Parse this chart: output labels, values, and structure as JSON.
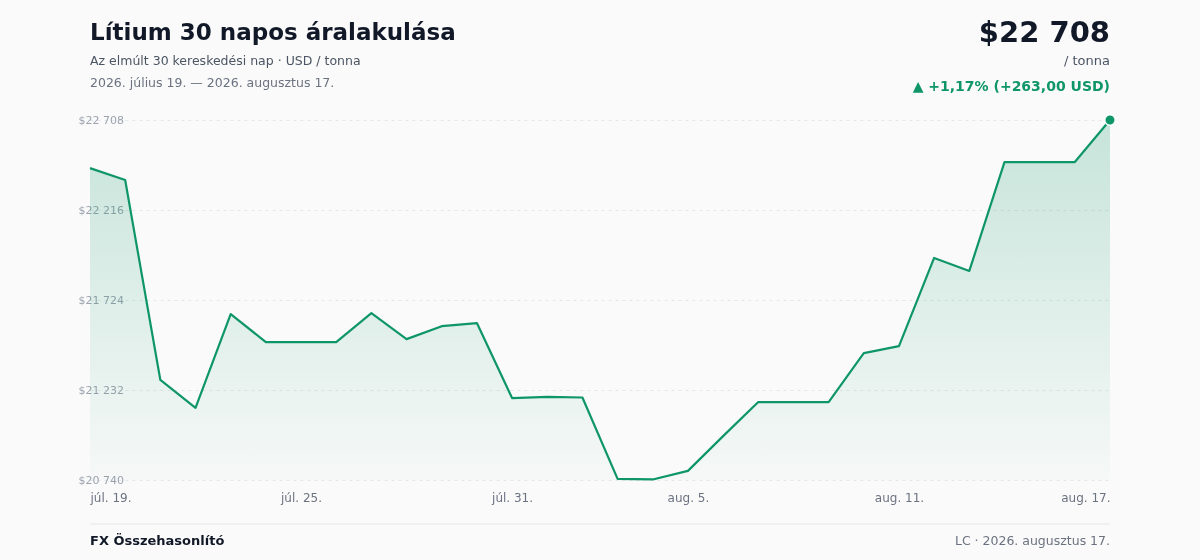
{
  "chart_data": {
    "type": "area",
    "title": "Lítium 30 napos áralakulása",
    "subtitle": "Az elmúlt 30 kereskedési nap · USD / tonna",
    "annotations": [
      "2026. július 19. — 2026. augusztus 17.",
      {
        "text": "$22 708",
        "x": "2026-08-17",
        "y": 22708
      },
      "/ tonna",
      "▲ +1,17% (+263,00 USD)",
      "FX Összehasonlító",
      "LC · 2026. augusztus 17."
    ],
    "x": [
      "2026-07-19",
      "2026-07-20",
      "2026-07-21",
      "2026-07-22",
      "2026-07-23",
      "2026-07-24",
      "2026-07-25",
      "2026-07-26",
      "2026-07-27",
      "2026-07-28",
      "2026-07-29",
      "2026-07-30",
      "2026-07-31",
      "2026-08-01",
      "2026-08-02",
      "2026-08-03",
      "2026-08-04",
      "2026-08-05",
      "2026-08-06",
      "2026-08-07",
      "2026-08-08",
      "2026-08-09",
      "2026-08-10",
      "2026-08-11",
      "2026-08-12",
      "2026-08-13",
      "2026-08-14",
      "2026-08-15",
      "2026-08-16",
      "2026-08-17"
    ],
    "series": [
      {
        "color": "#0f9668",
        "values": [
          22445,
          22380,
          21287,
          21134,
          21647,
          21494,
          21494,
          21494,
          21652,
          21510,
          21581,
          21598,
          21188,
          21194,
          21191,
          20746,
          20743,
          20790,
          20980,
          21166,
          21166,
          21166,
          21434,
          21472,
          21954,
          21883,
          22478,
          22478,
          22478,
          22708
        ]
      }
    ],
    "xlim": [
      "2026-07-19",
      "2026-08-17"
    ],
    "xticks": [
      {
        "value": "2026-07-19",
        "label": "júl. 19."
      },
      {
        "value": "2026-07-25",
        "label": "júl. 25."
      },
      {
        "value": "2026-07-31",
        "label": "júl. 31."
      },
      {
        "value": "2026-08-05",
        "label": "aug. 5."
      },
      {
        "value": "2026-08-11",
        "label": "aug. 11."
      },
      {
        "value": "2026-08-17",
        "label": "aug. 17."
      }
    ],
    "ylim": [
      20740,
      22708
    ],
    "yticks": [
      {
        "value": 20740,
        "label": "$20 740"
      },
      {
        "value": 21232,
        "label": "$21 232"
      },
      {
        "value": 21724,
        "label": "$21 724"
      },
      {
        "value": 22216,
        "label": "$22 216"
      },
      {
        "value": 22708,
        "label": "$22 708"
      }
    ],
    "grid": "y"
  }
}
